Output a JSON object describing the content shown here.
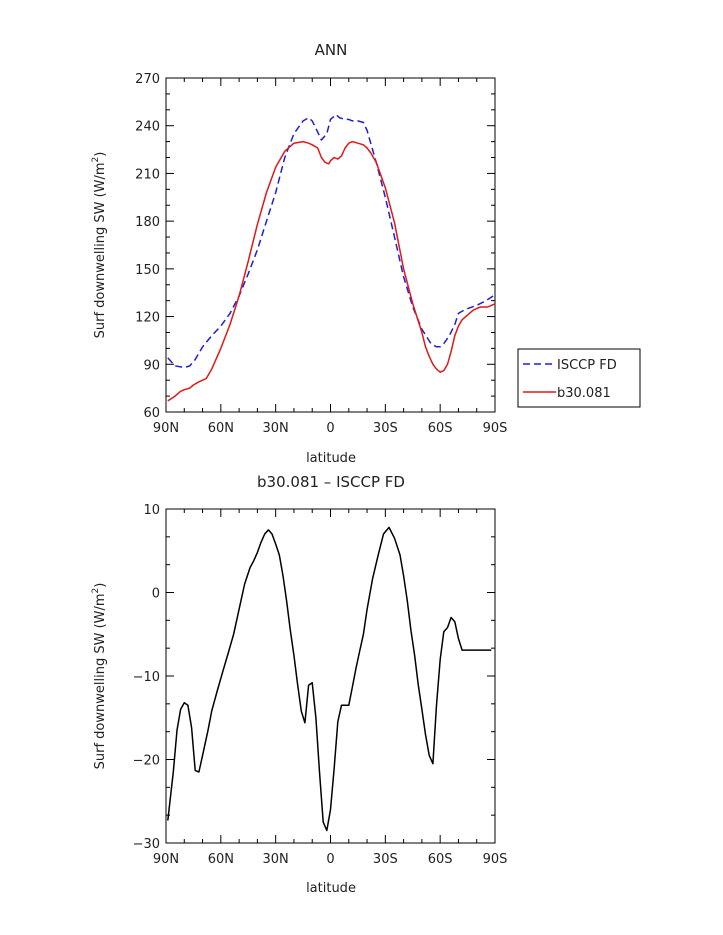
{
  "chart_data": [
    {
      "type": "line",
      "title": "ANN",
      "xlabel": "latitude",
      "ylabel": "Surf downwelling SW (W/m²)",
      "ylabel_main": "Surf downwelling SW (W/m",
      "ylabel_sup": "2",
      "ylabel_end": ")",
      "xlim": [
        -90,
        90
      ],
      "ylim": [
        60,
        270
      ],
      "x_ticks": [
        -90,
        -60,
        -30,
        0,
        30,
        60,
        90
      ],
      "x_tick_labels": [
        "90N",
        "60N",
        "30N",
        "0",
        "30S",
        "60S",
        "90S"
      ],
      "y_ticks": [
        60,
        90,
        120,
        150,
        180,
        210,
        240,
        270
      ],
      "y_tick_labels": [
        "60",
        "90",
        "120",
        "150",
        "180",
        "210",
        "240",
        "270"
      ],
      "grid": false,
      "legend": "right",
      "series": [
        {
          "name": "ISCCP FD",
          "color": "#1f1fd6",
          "dash": true,
          "x": [
            -89,
            -85,
            -80,
            -77,
            -74,
            -70,
            -65,
            -60,
            -55,
            -50,
            -45,
            -40,
            -35,
            -30,
            -25,
            -20,
            -15,
            -12,
            -10,
            -7,
            -5,
            -2,
            0,
            3,
            5,
            8,
            10,
            12,
            15,
            18,
            20,
            25,
            30,
            35,
            40,
            45,
            50,
            55,
            58,
            60,
            62,
            65,
            68,
            70,
            73,
            75,
            80,
            85,
            89
          ],
          "y": [
            94,
            89,
            88,
            89,
            93,
            101,
            108,
            114,
            122,
            133,
            147,
            162,
            180,
            198,
            220,
            235,
            243,
            245,
            243,
            236,
            231,
            235,
            244,
            247,
            245,
            244,
            244,
            243,
            243,
            242,
            237,
            217,
            195,
            170,
            145,
            126,
            112,
            103,
            101,
            101,
            103,
            108,
            115,
            122,
            124,
            125,
            127,
            130,
            133
          ]
        },
        {
          "name": "b30.081",
          "color": "#e01818",
          "dash": false,
          "x": [
            -89,
            -85,
            -82,
            -80,
            -77,
            -75,
            -72,
            -70,
            -68,
            -65,
            -60,
            -55,
            -50,
            -45,
            -40,
            -35,
            -30,
            -25,
            -20,
            -15,
            -12,
            -10,
            -7,
            -5,
            -3,
            -1,
            0,
            2,
            4,
            6,
            8,
            10,
            12,
            15,
            18,
            20,
            22,
            25,
            30,
            35,
            40,
            45,
            50,
            52,
            54,
            56,
            58,
            60,
            62,
            64,
            66,
            68,
            70,
            72,
            74,
            76,
            78,
            80,
            82,
            84,
            86,
            88,
            90
          ],
          "y": [
            67,
            70,
            73,
            74,
            75,
            77,
            79,
            80,
            81,
            87,
            100,
            115,
            133,
            155,
            178,
            198,
            214,
            224,
            229,
            230,
            229,
            228,
            226,
            220,
            217,
            216,
            218,
            220,
            219,
            221,
            226,
            229,
            230,
            229,
            228,
            226,
            223,
            217,
            201,
            179,
            150,
            128,
            110,
            101,
            95,
            90,
            87,
            85,
            86,
            90,
            98,
            108,
            114,
            118,
            120,
            122,
            124,
            125,
            126,
            126,
            126,
            127,
            128
          ]
        }
      ]
    },
    {
      "type": "line",
      "title": "b30.081 – ISCCP FD",
      "xlabel": "latitude",
      "ylabel": "Surf downwelling SW (W/m²)",
      "ylabel_main": "Surf downwelling SW (W/m",
      "ylabel_sup": "2",
      "ylabel_end": ")",
      "xlim": [
        -90,
        90
      ],
      "ylim": [
        -30,
        10
      ],
      "x_ticks": [
        -90,
        -60,
        -30,
        0,
        30,
        60,
        90
      ],
      "x_tick_labels": [
        "90N",
        "60N",
        "30N",
        "0",
        "30S",
        "60S",
        "90S"
      ],
      "y_ticks": [
        -30,
        -20,
        -10,
        0,
        10
      ],
      "y_tick_labels": [
        "−30",
        "−20",
        "−10",
        "0",
        "10"
      ],
      "grid": false,
      "series": [
        {
          "name": "",
          "color": "#000000",
          "dash": false,
          "x": [
            -89,
            -86,
            -84,
            -82,
            -80,
            -78,
            -76,
            -74,
            -72,
            -70,
            -67,
            -65,
            -62,
            -59,
            -56,
            -53,
            -50,
            -47,
            -44,
            -42,
            -40,
            -38,
            -36,
            -34,
            -32,
            -30,
            -28,
            -26,
            -24,
            -22,
            -20,
            -18,
            -16,
            -14,
            -12,
            -10,
            -8,
            -6,
            -4,
            -2,
            0,
            2,
            4,
            6,
            8,
            10,
            12,
            14,
            16,
            18,
            20,
            23,
            26,
            29,
            32,
            35,
            38,
            40,
            42,
            44,
            46,
            48,
            50,
            52,
            54,
            56,
            58,
            60,
            62,
            64,
            66,
            68,
            70,
            72,
            74,
            76,
            78,
            80,
            82,
            84,
            86,
            88
          ],
          "y": [
            -27.3,
            -21.5,
            -16.5,
            -14,
            -13.2,
            -13.5,
            -16.2,
            -21.3,
            -21.5,
            -19.5,
            -16.5,
            -14.2,
            -11.8,
            -9.5,
            -7.3,
            -5,
            -2,
            1,
            3,
            3.8,
            4.8,
            6,
            7,
            7.5,
            7,
            5.8,
            4.5,
            2,
            -1,
            -4.5,
            -7.5,
            -11,
            -14.2,
            -15.6,
            -11.1,
            -10.8,
            -15,
            -21.5,
            -27.5,
            -28.5,
            -26,
            -21,
            -15.5,
            -13.5,
            -13.5,
            -13.5,
            -11.3,
            -9,
            -7,
            -5,
            -2,
            1.6,
            4.4,
            7,
            7.8,
            6.5,
            4.5,
            2,
            -1,
            -4.5,
            -7.5,
            -11,
            -14,
            -17,
            -19.5,
            -20.5,
            -13.5,
            -8,
            -4.7,
            -4.2,
            -3,
            -3.5,
            -5.5,
            -6.9,
            -6.9,
            -6.9,
            -6.9,
            -6.9,
            -6.9,
            -6.9,
            -6.9,
            -6.9
          ]
        }
      ]
    }
  ]
}
